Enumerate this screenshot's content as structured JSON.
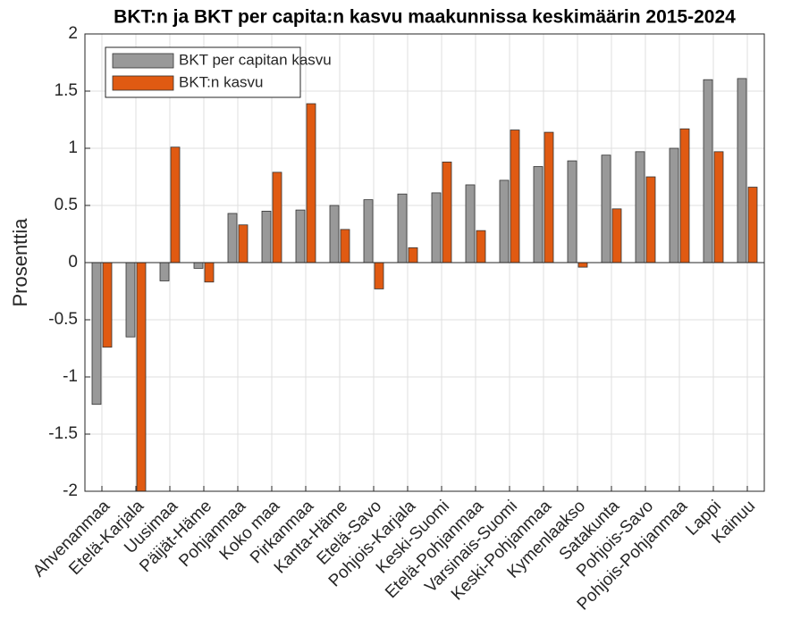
{
  "chart_data": {
    "type": "bar",
    "title": "BKT:n ja BKT per capita:n kasvu maakunnissa keskimäärin 2015-2024",
    "ylabel": "Prosenttia",
    "categories": [
      "Ahvenanmaa",
      "Etelä-Karjala",
      "Uusimaa",
      "Päijät-Häme",
      "Pohjanmaa",
      "Koko maa",
      "Pirkanmaa",
      "Kanta-Häme",
      "Etelä-Savo",
      "Pohjois-Karjala",
      "Keski-Suomi",
      "Etelä-Pohjanmaa",
      "Varsinais-Suomi",
      "Keski-Pohjanmaa",
      "Kymenlaakso",
      "Satakunta",
      "Pohjois-Savo",
      "Pohjois-Pohjanmaa",
      "Lappi",
      "Kainuu"
    ],
    "series": [
      {
        "name": "BKT per capitan kasvu",
        "color": "#999999",
        "values": [
          -1.24,
          -0.65,
          -0.16,
          -0.05,
          0.43,
          0.45,
          0.46,
          0.5,
          0.55,
          0.6,
          0.61,
          0.68,
          0.72,
          0.84,
          0.89,
          0.94,
          0.97,
          1.0,
          1.6,
          1.61
        ]
      },
      {
        "name": "BKT:n kasvu",
        "color": "#e05a12",
        "values": [
          -0.74,
          -2.05,
          1.01,
          -0.17,
          0.33,
          0.79,
          1.39,
          0.29,
          -0.23,
          0.13,
          0.88,
          0.28,
          1.16,
          1.14,
          -0.04,
          0.47,
          0.75,
          1.17,
          0.97,
          0.66
        ]
      }
    ],
    "ylim": [
      -2,
      2
    ],
    "yticks": [
      -2,
      -1.5,
      -1,
      -0.5,
      0,
      0.5,
      1,
      1.5,
      2
    ],
    "grid": true,
    "legend": "upper left"
  }
}
